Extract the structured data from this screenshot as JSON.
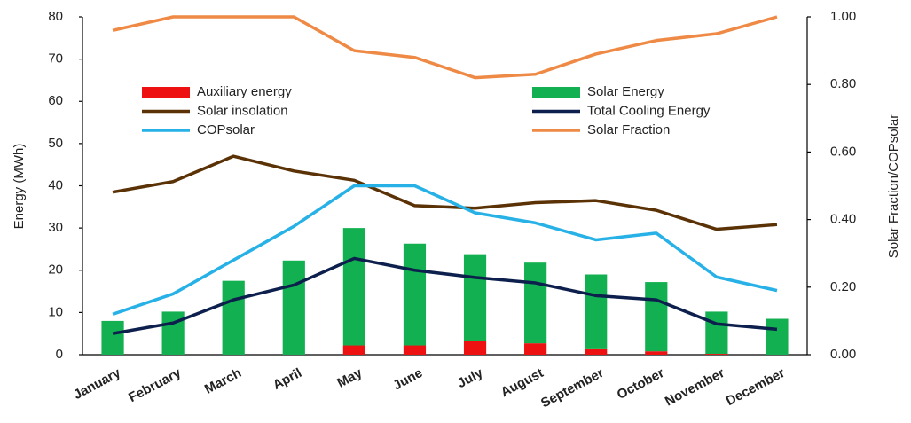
{
  "chart_data": {
    "type": "bar",
    "categories": [
      "January",
      "February",
      "March",
      "April",
      "May",
      "June",
      "July",
      "August",
      "September",
      "October",
      "November",
      "December"
    ],
    "ylabel": "Energy (MWh)",
    "y2label": "Solar Fraction/COPsolar",
    "ylim": [
      0,
      80
    ],
    "yticks": [
      0,
      10,
      20,
      30,
      40,
      50,
      60,
      70,
      80
    ],
    "y2lim": [
      0,
      1
    ],
    "y2ticks": [
      {
        "value": 0,
        "label": "0.00"
      },
      {
        "value": 0.2,
        "label": "0.20"
      },
      {
        "value": 0.4,
        "label": "0.40"
      },
      {
        "value": 0.6,
        "label": "0.60"
      },
      {
        "value": 0.8,
        "label": "0.80"
      },
      {
        "value": 1,
        "label": "1.00"
      }
    ],
    "grid": false,
    "series": [
      {
        "name": "Auxiliary energy",
        "kind": "bar",
        "color": "#ee1111",
        "values": [
          0,
          0,
          0,
          0,
          2.2,
          2.2,
          3.2,
          2.7,
          1.5,
          0.8,
          0.2,
          0
        ]
      },
      {
        "name": "Solar Energy",
        "kind": "bar",
        "color": "#12b050",
        "values": [
          8,
          10.2,
          17.5,
          22.3,
          27.8,
          24.1,
          20.6,
          19.1,
          17.5,
          16.4,
          10,
          8.5
        ]
      },
      {
        "name": "Solar insolation",
        "kind": "line",
        "color": "#5a3206",
        "values": [
          38.5,
          41,
          47,
          43.5,
          41.3,
          35.3,
          34.7,
          36,
          36.5,
          34.2,
          29.7,
          30.8
        ]
      },
      {
        "name": "Total Cooling Energy",
        "kind": "line",
        "color": "#0d1f4d",
        "values": [
          5,
          7.5,
          13,
          16.5,
          22.8,
          20,
          18.3,
          17,
          14,
          13,
          7.3,
          6
        ]
      },
      {
        "name": "COPsolar",
        "kind": "line",
        "axis": "y2",
        "color": "#27b1e6",
        "values": [
          0.12,
          0.18,
          0.28,
          0.38,
          0.5,
          0.5,
          0.42,
          0.39,
          0.34,
          0.36,
          0.23,
          0.19
        ]
      },
      {
        "name": "Solar Fraction",
        "kind": "line",
        "axis": "y2",
        "color": "#ee8a45",
        "values": [
          0.96,
          1.0,
          1.0,
          1.0,
          0.9,
          0.88,
          0.82,
          0.83,
          0.89,
          0.93,
          0.95,
          1.0
        ]
      }
    ]
  }
}
